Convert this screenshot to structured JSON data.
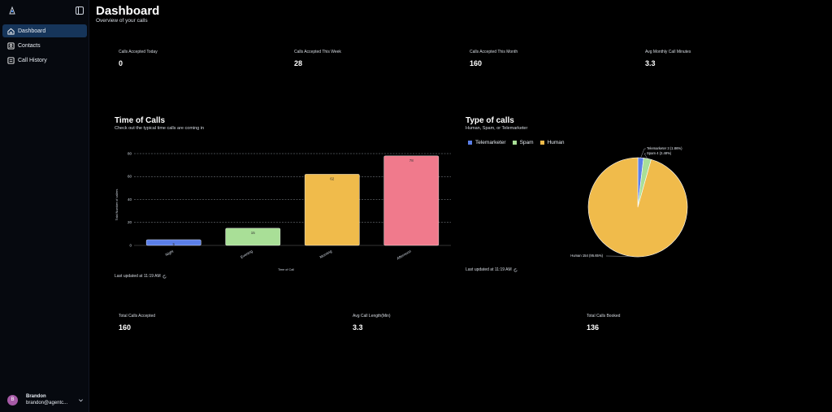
{
  "sidebar": {
    "items": [
      {
        "label": "Dashboard",
        "icon": "home-icon",
        "active": true
      },
      {
        "label": "Contacts",
        "icon": "contacts-icon",
        "active": false
      },
      {
        "label": "Call History",
        "icon": "history-icon",
        "active": false
      }
    ],
    "user": {
      "initial": "B",
      "name": "Brandon",
      "email": "brandon@agentc..."
    }
  },
  "header": {
    "title": "Dashboard",
    "subtitle": "Overview of your calls"
  },
  "stats_top": [
    {
      "label": "Calls Accepted Today",
      "value": "0"
    },
    {
      "label": "Calls Accepted This Week",
      "value": "28"
    },
    {
      "label": "Calls Accepted This Month",
      "value": "160"
    },
    {
      "label": "Avg Monthly Call Minutes",
      "value": "3.3"
    }
  ],
  "time_card": {
    "title": "Time of Calls",
    "subtitle": "Check out the typical time calls are coming in",
    "updated": "Last updated at 11:19 AM"
  },
  "type_card": {
    "title": "Type of calls",
    "subtitle": "Human, Spam, or Telemarketer",
    "updated": "Last updated at 11:19 AM"
  },
  "stats_bottom": [
    {
      "label": "Total Calls Accepted",
      "value": "160"
    },
    {
      "label": "Avg Call Length(Min)",
      "value": "3.3"
    },
    {
      "label": "Total Calls Booked",
      "value": "136"
    }
  ],
  "chart_data": [
    {
      "type": "bar",
      "title": "",
      "xlabel": "Time of Call",
      "ylabel": "Total Number of callers",
      "categories": [
        "Night",
        "Evening",
        "Morning",
        "Afternoon"
      ],
      "values": [
        5,
        15,
        62,
        78
      ],
      "data_labels": [
        "5",
        "15",
        "62",
        "78"
      ],
      "colors": [
        "#5b7fe8",
        "#a9df97",
        "#f0bb4b",
        "#f07a8c"
      ],
      "ylim": [
        0,
        80
      ],
      "yticks": [
        0,
        20,
        40,
        60,
        80
      ],
      "grid": true
    },
    {
      "type": "pie",
      "title": "",
      "legend_position": "top-left",
      "labels": [
        "Telemarketer",
        "Spam",
        "Human"
      ],
      "values": [
        3,
        4,
        154
      ],
      "colors": [
        "#5b7fe8",
        "#a9df97",
        "#f0bb4b"
      ],
      "slice_labels": [
        "Telemarketer 3 (1.86%)",
        "Spam 4 (2.48%)",
        "Human 154 (95.65%)"
      ]
    }
  ]
}
